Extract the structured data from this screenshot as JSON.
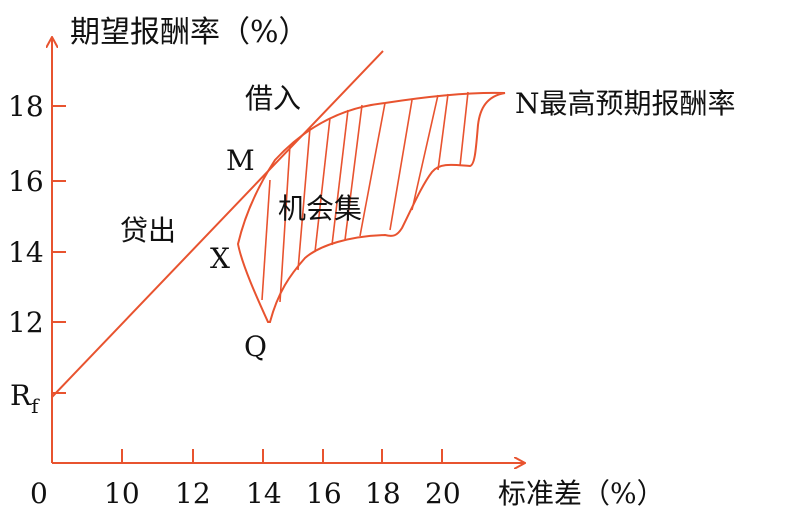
{
  "colors": {
    "curve": "#e8532f",
    "text": "#111111",
    "background": "#ffffff"
  },
  "axes": {
    "y_label": "期望报酬率（%）",
    "x_label": "标准差（%）",
    "origin": "0",
    "y_ticks": [
      "18",
      "16",
      "14",
      "12"
    ],
    "x_ticks": [
      "10",
      "12",
      "14",
      "16",
      "18",
      "20"
    ]
  },
  "labels": {
    "borrow": "借入",
    "lend": "贷出",
    "opportunity_set": "机会集",
    "n_point": "N最高预期报酬率",
    "m_point": "M",
    "x_point": "X",
    "q_point": "Q",
    "rf_main": "R",
    "rf_sub": "f"
  }
}
